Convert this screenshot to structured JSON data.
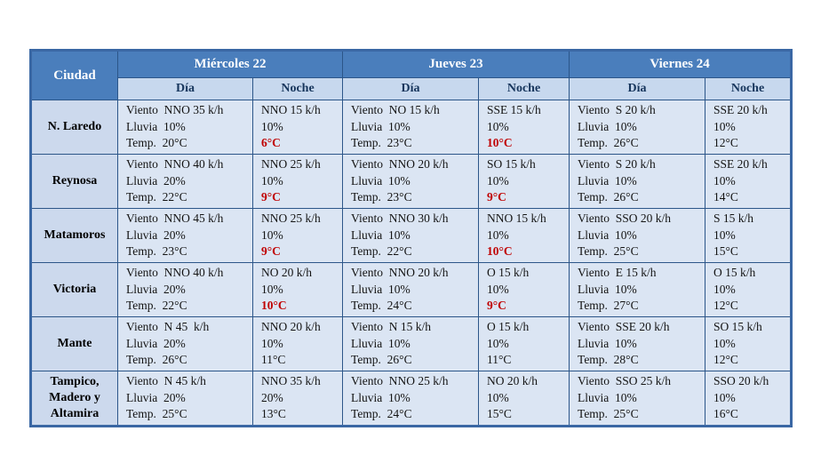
{
  "table": {
    "city_header": "Ciudad",
    "days": [
      {
        "label": "Miércoles 22",
        "sub": [
          "Día",
          "Noche"
        ]
      },
      {
        "label": "Jueves 23",
        "sub": [
          "Día",
          "Noche"
        ]
      },
      {
        "label": "Viernes 24",
        "sub": [
          "Día",
          "Noche"
        ]
      }
    ],
    "labels": {
      "wind": "Viento",
      "rain": "Lluvia",
      "temp": "Temp."
    },
    "rows": [
      {
        "city": "N. Laredo",
        "cells": [
          {
            "type": "day",
            "wind": "NNO 35 k/h",
            "rain": "10%",
            "temp": "20°C",
            "temp_red": false
          },
          {
            "type": "night",
            "wind": "NNO 15 k/h",
            "rain": "10%",
            "temp": "6°C",
            "temp_red": true
          },
          {
            "type": "day",
            "wind": "NO 15 k/h",
            "rain": "10%",
            "temp": "23°C",
            "temp_red": false
          },
          {
            "type": "night",
            "wind": "SSE 15 k/h",
            "rain": "10%",
            "temp": "10°C",
            "temp_red": true
          },
          {
            "type": "day",
            "wind": "S 20 k/h",
            "rain": "10%",
            "temp": "26°C",
            "temp_red": false
          },
          {
            "type": "night",
            "wind": "SSE 20 k/h",
            "rain": "10%",
            "temp": "12°C",
            "temp_red": false
          }
        ]
      },
      {
        "city": "Reynosa",
        "cells": [
          {
            "type": "day",
            "wind": "NNO 40 k/h",
            "rain": "20%",
            "temp": "22°C",
            "temp_red": false
          },
          {
            "type": "night",
            "wind": "NNO 25 k/h",
            "rain": "10%",
            "temp": "9°C",
            "temp_red": true
          },
          {
            "type": "day",
            "wind": "NNO 20 k/h",
            "rain": "10%",
            "temp": "23°C",
            "temp_red": false
          },
          {
            "type": "night",
            "wind": "SO 15 k/h",
            "rain": "10%",
            "temp": "9°C",
            "temp_red": true
          },
          {
            "type": "day",
            "wind": "S 20 k/h",
            "rain": "10%",
            "temp": "26°C",
            "temp_red": false
          },
          {
            "type": "night",
            "wind": "SSE 20 k/h",
            "rain": "10%",
            "temp": "14°C",
            "temp_red": false
          }
        ]
      },
      {
        "city": "Matamoros",
        "cells": [
          {
            "type": "day",
            "wind": "NNO 45 k/h",
            "rain": "20%",
            "temp": "23°C",
            "temp_red": false
          },
          {
            "type": "night",
            "wind": "NNO 25 k/h",
            "rain": "10%",
            "temp": "9°C",
            "temp_red": true
          },
          {
            "type": "day",
            "wind": "NNO 30 k/h",
            "rain": "10%",
            "temp": "22°C",
            "temp_red": false
          },
          {
            "type": "night",
            "wind": "NNO 15 k/h",
            "rain": "10%",
            "temp": "10°C",
            "temp_red": true
          },
          {
            "type": "day",
            "wind": "SSO 20 k/h",
            "rain": "10%",
            "temp": "25°C",
            "temp_red": false
          },
          {
            "type": "night",
            "wind": "S 15 k/h",
            "rain": "10%",
            "temp": "15°C",
            "temp_red": false
          }
        ]
      },
      {
        "city": "Victoria",
        "cells": [
          {
            "type": "day",
            "wind": "NNO 40 k/h",
            "rain": "20%",
            "temp": "22°C",
            "temp_red": false
          },
          {
            "type": "night",
            "wind": "NO 20 k/h",
            "rain": "10%",
            "temp": "10°C",
            "temp_red": true
          },
          {
            "type": "day",
            "wind": "NNO 20 k/h",
            "rain": "10%",
            "temp": "24°C",
            "temp_red": false
          },
          {
            "type": "night",
            "wind": "O 15 k/h",
            "rain": "10%",
            "temp": "9°C",
            "temp_red": true
          },
          {
            "type": "day",
            "wind": "E 15 k/h",
            "rain": "10%",
            "temp": "27°C",
            "temp_red": false
          },
          {
            "type": "night",
            "wind": "O 15 k/h",
            "rain": "10%",
            "temp": "12°C",
            "temp_red": false
          }
        ]
      },
      {
        "city": "Mante",
        "cells": [
          {
            "type": "day",
            "wind": "N 45  k/h",
            "rain": "20%",
            "temp": "26°C",
            "temp_red": false
          },
          {
            "type": "night",
            "wind": "NNO 20 k/h",
            "rain": "10%",
            "temp": "11°C",
            "temp_red": false
          },
          {
            "type": "day",
            "wind": "N 15 k/h",
            "rain": "10%",
            "temp": "26°C",
            "temp_red": false
          },
          {
            "type": "night",
            "wind": "O 15 k/h",
            "rain": "10%",
            "temp": "11°C",
            "temp_red": false
          },
          {
            "type": "day",
            "wind": "SSE 20 k/h",
            "rain": "10%",
            "temp": "28°C",
            "temp_red": false
          },
          {
            "type": "night",
            "wind": "SO 15 k/h",
            "rain": "10%",
            "temp": "12°C",
            "temp_red": false
          }
        ]
      },
      {
        "city": "Tampico, Madero y Altamira",
        "cells": [
          {
            "type": "day",
            "wind": "N 45 k/h",
            "rain": "20%",
            "temp": "25°C",
            "temp_red": false
          },
          {
            "type": "night",
            "wind": "NNO 35 k/h",
            "rain": "20%",
            "temp": "13°C",
            "temp_red": false
          },
          {
            "type": "day",
            "wind": "NNO 25 k/h",
            "rain": "10%",
            "temp": "24°C",
            "temp_red": false
          },
          {
            "type": "night",
            "wind": "NO 20 k/h",
            "rain": "10%",
            "temp": "15°C",
            "temp_red": false
          },
          {
            "type": "day",
            "wind": "SSO 25 k/h",
            "rain": "10%",
            "temp": "25°C",
            "temp_red": false
          },
          {
            "type": "night",
            "wind": "SSO 20 k/h",
            "rain": "10%",
            "temp": "16°C",
            "temp_red": false
          }
        ]
      }
    ],
    "colors": {
      "header_blue": "#4a7ebc",
      "subheader_blue": "#c7d8ee",
      "city_cell_blue": "#ccd9ed",
      "data_cell_blue": "#dbe5f3",
      "border_blue": "#2c5689",
      "outer_border_blue": "#3a67a4",
      "temp_alert_red": "#c00000"
    }
  }
}
